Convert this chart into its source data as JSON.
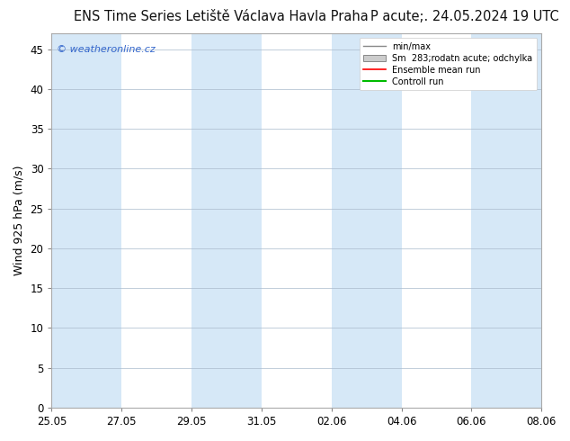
{
  "title_left": "ENS Time Series Letiště Václava Havla Praha",
  "title_right": "P acute;. 24.05.2024 19 UTC",
  "ylabel": "Wind 925 hPa (m/s)",
  "ylim": [
    0,
    47
  ],
  "yticks": [
    0,
    5,
    10,
    15,
    20,
    25,
    30,
    35,
    40,
    45
  ],
  "background_color": "#ffffff",
  "watermark": "© weatheronline.cz",
  "watermark_color": "#3366cc",
  "legend_labels": [
    "min/max",
    "Sm  283;rodatn acute; odchylka",
    "Ensemble mean run",
    "Controll run"
  ],
  "x_tick_labels": [
    "25.05",
    "27.05",
    "29.05",
    "31.05",
    "02.06",
    "04.06",
    "06.06",
    "08.06"
  ],
  "x_tick_positions": [
    0,
    2,
    4,
    6,
    8,
    10,
    12,
    14
  ],
  "shaded_bands": [
    {
      "start": 0,
      "end": 2,
      "color": "#d6e8f7"
    },
    {
      "start": 2,
      "end": 4,
      "color": "#ffffff"
    },
    {
      "start": 4,
      "end": 6,
      "color": "#d6e8f7"
    },
    {
      "start": 6,
      "end": 8,
      "color": "#ffffff"
    },
    {
      "start": 8,
      "end": 10,
      "color": "#d6e8f7"
    },
    {
      "start": 10,
      "end": 12,
      "color": "#ffffff"
    },
    {
      "start": 12,
      "end": 14,
      "color": "#d6e8f7"
    }
  ],
  "grid_color": "#aabbcc",
  "title_fontsize": 10.5,
  "axis_fontsize": 9,
  "tick_fontsize": 8.5
}
